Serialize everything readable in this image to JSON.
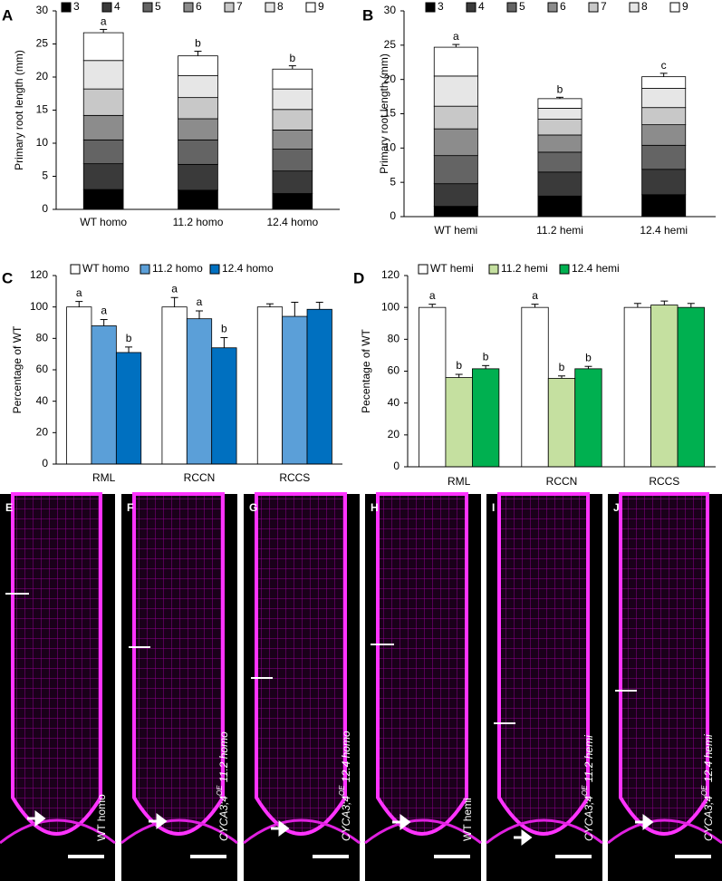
{
  "chart_data": [
    {
      "type": "stacked_bar",
      "panel": "A",
      "y_label": "Primary root length (mm)",
      "categories": [
        "WT homo",
        "11.2 homo",
        "12.4 homo"
      ],
      "ylim": [
        0,
        30
      ],
      "yticks": [
        0,
        5,
        10,
        15,
        20,
        25,
        30
      ],
      "letters": [
        "a",
        "b",
        "b"
      ],
      "series": [
        {
          "name": "3",
          "color": "#000000",
          "values": [
            3.0,
            2.9,
            2.4
          ],
          "errors": [
            0.1,
            0.1,
            0.1
          ]
        },
        {
          "name": "4",
          "color": "#3a3a3a",
          "values": [
            3.9,
            3.9,
            3.4
          ],
          "errors": [
            0.2,
            0.2,
            0.2
          ]
        },
        {
          "name": "5",
          "color": "#646464",
          "values": [
            3.6,
            3.7,
            3.3
          ],
          "errors": [
            0.2,
            0.3,
            0.2
          ]
        },
        {
          "name": "6",
          "color": "#8c8c8c",
          "values": [
            3.7,
            3.2,
            2.9
          ],
          "errors": [
            0.2,
            0.3,
            0.2
          ]
        },
        {
          "name": "7",
          "color": "#c8c8c8",
          "values": [
            4.0,
            3.2,
            3.1
          ],
          "errors": [
            0.3,
            0.3,
            0.3
          ]
        },
        {
          "name": "8",
          "color": "#e6e6e6",
          "values": [
            4.3,
            3.3,
            3.1
          ],
          "errors": [
            0.3,
            0.4,
            0.3
          ]
        },
        {
          "name": "9",
          "color": "#ffffff",
          "values": [
            4.2,
            3.0,
            3.0
          ],
          "errors": [
            0.5,
            0.7,
            0.5
          ]
        }
      ]
    },
    {
      "type": "stacked_bar",
      "panel": "B",
      "y_label": "Primary root length (mm)",
      "categories": [
        "WT hemi",
        "11.2 hemi",
        "12.4 hemi"
      ],
      "ylim": [
        0,
        30
      ],
      "yticks": [
        0,
        5,
        10,
        15,
        20,
        25,
        30
      ],
      "letters": [
        "a",
        "b",
        "c"
      ],
      "series": [
        {
          "name": "3",
          "color": "#000000",
          "values": [
            1.5,
            3.0,
            3.2
          ],
          "errors": [
            0.1,
            0.1,
            0.1
          ]
        },
        {
          "name": "4",
          "color": "#3a3a3a",
          "values": [
            3.3,
            3.5,
            3.7
          ],
          "errors": [
            0.2,
            0.2,
            0.2
          ]
        },
        {
          "name": "5",
          "color": "#646464",
          "values": [
            4.1,
            2.9,
            3.5
          ],
          "errors": [
            0.2,
            0.2,
            0.2
          ]
        },
        {
          "name": "6",
          "color": "#8c8c8c",
          "values": [
            3.9,
            2.5,
            3.0
          ],
          "errors": [
            0.2,
            0.2,
            0.2
          ]
        },
        {
          "name": "7",
          "color": "#c8c8c8",
          "values": [
            3.3,
            2.3,
            2.5
          ],
          "errors": [
            0.3,
            0.2,
            0.3
          ]
        },
        {
          "name": "8",
          "color": "#e6e6e6",
          "values": [
            4.4,
            1.6,
            2.8
          ],
          "errors": [
            0.3,
            0.2,
            0.3
          ]
        },
        {
          "name": "9",
          "color": "#ffffff",
          "values": [
            4.2,
            1.4,
            1.7
          ],
          "errors": [
            0.4,
            0.2,
            0.5
          ]
        }
      ]
    },
    {
      "type": "bar",
      "panel": "C",
      "y_label": "Percentage of WT",
      "categories": [
        "RML",
        "RCCN",
        "RCCS"
      ],
      "ylim": [
        0,
        120
      ],
      "yticks": [
        0,
        20,
        40,
        60,
        80,
        100,
        120
      ],
      "series": [
        {
          "name": "WT homo",
          "color": "#ffffff",
          "values": [
            100,
            100,
            100
          ],
          "errors": [
            3.5,
            6,
            2
          ],
          "letters": [
            "a",
            "a",
            null
          ]
        },
        {
          "name": "11.2 homo",
          "color": "#5b9fd8",
          "values": [
            88,
            92.5,
            94
          ],
          "errors": [
            4,
            5,
            9
          ],
          "letters": [
            "a",
            "a",
            null
          ]
        },
        {
          "name": "12.4 homo",
          "color": "#0070c0",
          "values": [
            71,
            74,
            98.5
          ],
          "errors": [
            3.5,
            6.5,
            4.5
          ],
          "letters": [
            "b",
            "b",
            null
          ]
        }
      ]
    },
    {
      "type": "bar",
      "panel": "D",
      "y_label": "Pecentage of WT",
      "categories": [
        "RML",
        "RCCN",
        "RCCS"
      ],
      "ylim": [
        0,
        120
      ],
      "yticks": [
        0,
        20,
        40,
        60,
        80,
        100,
        120
      ],
      "series": [
        {
          "name": "WT hemi",
          "color": "#ffffff",
          "values": [
            100,
            100,
            100
          ],
          "errors": [
            2,
            2,
            2.5
          ],
          "letters": [
            "a",
            "a",
            null
          ]
        },
        {
          "name": "11.2 hemi",
          "color": "#c5e0a0",
          "values": [
            56,
            55.5,
            101.5
          ],
          "errors": [
            2,
            1.5,
            2.5
          ],
          "letters": [
            "b",
            "b",
            null
          ]
        },
        {
          "name": "12.4 hemi",
          "color": "#00b050",
          "values": [
            61.5,
            61.5,
            100
          ],
          "errors": [
            2,
            1.5,
            2.5
          ],
          "letters": [
            "b",
            "b",
            null
          ]
        }
      ]
    }
  ],
  "image_panels": [
    {
      "letter": "E",
      "caption": {
        "line": "WT homo"
      }
    },
    {
      "letter": "F",
      "caption": {
        "gene": "CYCA3;4",
        "sup": "OE",
        "line": " 11.2 homo"
      }
    },
    {
      "letter": "G",
      "caption": {
        "gene": "CYCA3;4",
        "sup": "OE",
        "line": " 12.4 homo"
      }
    },
    {
      "letter": "H",
      "caption": {
        "line": "WT hemi"
      }
    },
    {
      "letter": "I",
      "caption": {
        "gene": "CYCA3;4",
        "sup": "OE",
        "line": " 11.2 hemi"
      }
    },
    {
      "letter": "J",
      "caption": {
        "gene": "CYCA3;4",
        "sup": "OE",
        "line": " 12.4 hemi"
      }
    }
  ]
}
